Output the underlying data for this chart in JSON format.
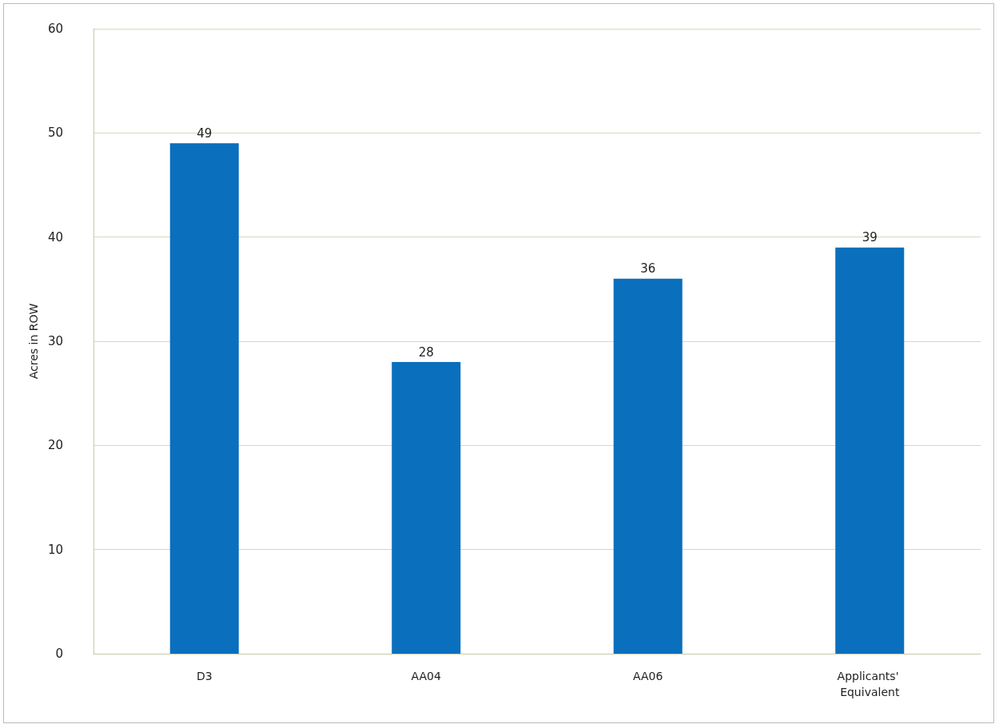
{
  "chart_data": {
    "type": "bar",
    "ylabel": "Acres in ROW",
    "categories": [
      "D3",
      "AA04",
      "AA06",
      "Applicants' Equivalent"
    ],
    "values": [
      49,
      28,
      36,
      39
    ],
    "color": "#0a6fbd",
    "ylim": [
      0,
      60
    ],
    "yticks": [
      0,
      10,
      20,
      30,
      40,
      50,
      60
    ],
    "grid": "y",
    "data_labels": true
  }
}
